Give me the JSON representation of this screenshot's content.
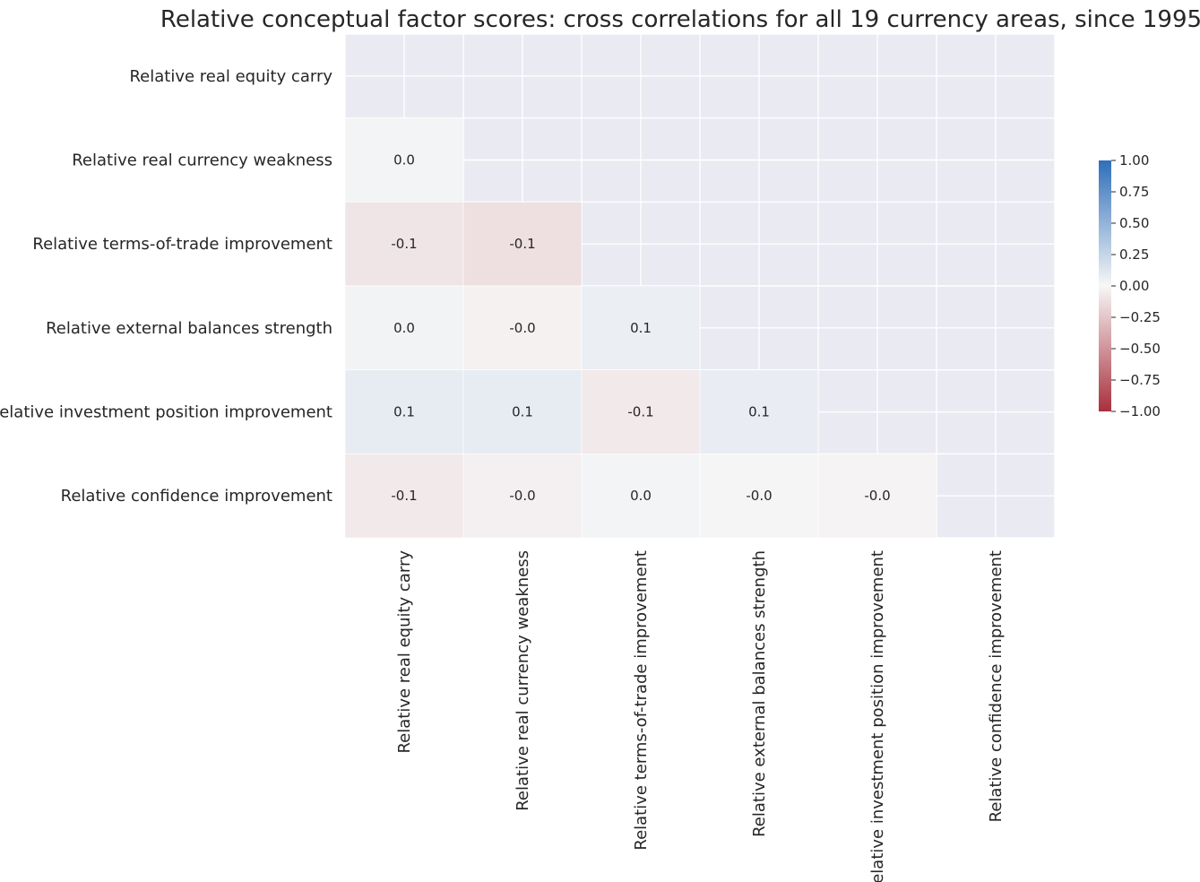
{
  "chart_data": {
    "type": "heatmap",
    "title": "Relative conceptual factor scores: cross correlations for all 19 currency areas, since 1995",
    "labels": [
      "Relative real equity carry",
      "Relative real currency weakness",
      "Relative terms-of-trade improvement",
      "Relative external balances strength",
      "Relative investment position improvement",
      "Relative confidence improvement"
    ],
    "mask": "upper triangle including diagonal",
    "matrix": [
      [
        null,
        null,
        null,
        null,
        null,
        null
      ],
      [
        0.02,
        null,
        null,
        null,
        null,
        null
      ],
      [
        -0.09,
        -0.12,
        null,
        null,
        null,
        null
      ],
      [
        0.03,
        -0.03,
        0.06,
        null,
        null,
        null
      ],
      [
        0.08,
        0.08,
        -0.07,
        0.07,
        null,
        null
      ],
      [
        -0.07,
        -0.04,
        0.02,
        -0.01,
        -0.02,
        null
      ]
    ],
    "annotations": [
      [
        "",
        "",
        "",
        "",
        "",
        ""
      ],
      [
        "0.0",
        "",
        "",
        "",
        "",
        ""
      ],
      [
        "-0.1",
        "-0.1",
        "",
        "",
        "",
        ""
      ],
      [
        "0.0",
        "-0.0",
        "0.1",
        "",
        "",
        ""
      ],
      [
        "0.1",
        "0.1",
        "-0.1",
        "0.1",
        "",
        ""
      ],
      [
        "-0.1",
        "-0.0",
        "0.0",
        "-0.0",
        "-0.0",
        ""
      ]
    ],
    "colorbar": {
      "vmin": -1,
      "vmax": 1,
      "ticks": [
        "1.00",
        "0.75",
        "0.50",
        "0.25",
        "0.00",
        "−0.25",
        "−0.50",
        "−0.75",
        "−1.00"
      ],
      "colors": {
        "neg": "#a8303d",
        "mid": "#f7f7f7",
        "pos": "#2f6fb9"
      }
    },
    "background_color": "#eaeaf2",
    "grid": true
  }
}
